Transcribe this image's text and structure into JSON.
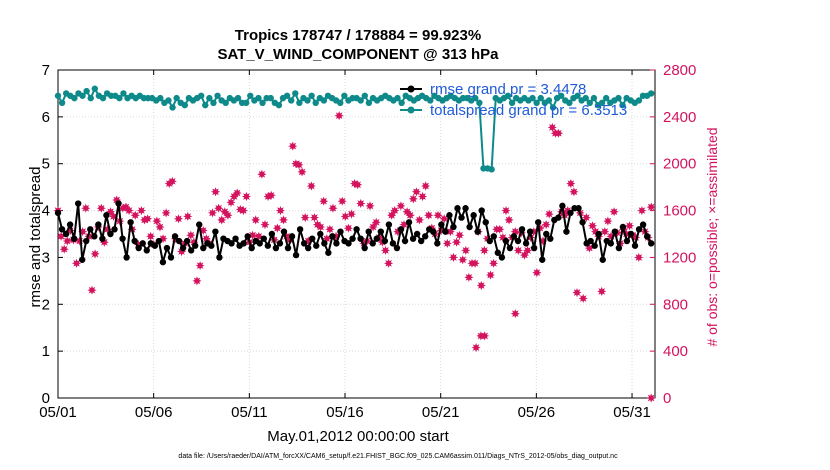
{
  "chart_data": {
    "type": "line",
    "title_line1": "Tropics 178747 / 178884 = 99.923%",
    "title_line2": "SAT_V_WIND_COMPONENT @ 313 hPa",
    "xlabel": "May.01,2012 00:00:00 start",
    "ylabel_left": "rmse and totalspread",
    "ylabel_right": "# of obs: o=possible; ×=assimilated",
    "footnote": "data file: /Users/raeder/DAI/ATM_forcXX/CAM6_setup/f.e21.FHIST_BGC.f09_025.CAM6assim.011/Diags_NTrS_2012-05/obs_diag_output.nc",
    "xlim": [
      1,
      32.2
    ],
    "ylim_left": [
      0,
      7
    ],
    "ylim_right": [
      0,
      2800
    ],
    "x_ticks": [
      1,
      6,
      11,
      16,
      21,
      26,
      31
    ],
    "x_tick_labels": [
      "05/01",
      "05/06",
      "05/11",
      "05/16",
      "05/21",
      "05/26",
      "05/31"
    ],
    "y_ticks_left": [
      0,
      1,
      2,
      3,
      4,
      5,
      6,
      7
    ],
    "y_ticks_right": [
      0,
      400,
      800,
      1200,
      1600,
      2000,
      2400,
      2800
    ],
    "grid": true,
    "legend_position": "top-right",
    "colors": {
      "rmse": "#000000",
      "spread": "#0e8a8a",
      "obs": "#d4135f",
      "legend_text": "#1f5bd8"
    },
    "series": [
      {
        "name": "rmse",
        "legend_label": "rmse grand pr = 3.4478",
        "axis": "left",
        "values": [
          3.95,
          3.6,
          3.5,
          3.7,
          3.4,
          4.15,
          2.95,
          3.35,
          3.6,
          3.45,
          3.7,
          3.4,
          3.9,
          3.5,
          3.6,
          4.15,
          3.4,
          3.0,
          3.75,
          3.35,
          3.2,
          3.3,
          3.15,
          3.3,
          3.25,
          3.35,
          2.9,
          3.2,
          3.0,
          3.45,
          3.35,
          3.2,
          3.35,
          3.15,
          3.25,
          3.7,
          3.2,
          3.3,
          3.25,
          3.55,
          3.0,
          3.4,
          3.35,
          3.3,
          3.4,
          3.25,
          3.3,
          3.45,
          3.2,
          3.35,
          3.3,
          3.4,
          3.25,
          3.5,
          3.2,
          3.3,
          3.55,
          3.2,
          3.45,
          3.05,
          3.6,
          3.3,
          3.2,
          3.4,
          3.25,
          3.5,
          3.3,
          3.1,
          3.45,
          3.3,
          3.55,
          3.35,
          3.3,
          3.4,
          3.6,
          3.4,
          3.2,
          3.55,
          3.3,
          3.4,
          3.55,
          3.35,
          3.7,
          3.3,
          3.2,
          3.6,
          3.35,
          3.75,
          3.4,
          3.5,
          3.35,
          3.45,
          3.6,
          3.55,
          3.3,
          3.7,
          3.55,
          3.9,
          3.65,
          4.05,
          3.85,
          4.05,
          3.65,
          3.9,
          3.55,
          4.0,
          3.75,
          3.35,
          3.45,
          3.1,
          3.0,
          3.35,
          3.2,
          3.45,
          3.35,
          3.6,
          3.3,
          3.55,
          3.2,
          3.75,
          2.95,
          3.5,
          3.4,
          3.8,
          3.85,
          4.1,
          3.55,
          3.95,
          4.05,
          4.05,
          3.75,
          3.3,
          3.35,
          3.25,
          3.5,
          2.95,
          3.35,
          3.3,
          3.55,
          3.2,
          3.65,
          3.35,
          3.5,
          3.25,
          3.6,
          3.7,
          3.45,
          3.3
        ],
        "markers": "filled-circle",
        "line": "solid"
      },
      {
        "name": "totalspread",
        "legend_label": "totalspread grand pr = 6.3513",
        "axis": "left",
        "values": [
          6.45,
          6.3,
          6.5,
          6.45,
          6.4,
          6.5,
          6.45,
          6.55,
          6.4,
          6.6,
          6.45,
          6.4,
          6.5,
          6.45,
          6.45,
          6.4,
          6.5,
          6.4,
          6.45,
          6.4,
          6.45,
          6.4,
          6.4,
          6.4,
          6.35,
          6.4,
          6.3,
          6.35,
          6.2,
          6.4,
          6.3,
          6.25,
          6.4,
          6.35,
          6.4,
          6.45,
          6.25,
          6.4,
          6.3,
          6.45,
          6.35,
          6.3,
          6.4,
          6.35,
          6.4,
          6.3,
          6.3,
          6.45,
          6.35,
          6.4,
          6.3,
          6.4,
          6.4,
          6.3,
          6.25,
          6.4,
          6.45,
          6.35,
          6.5,
          6.3,
          6.4,
          6.35,
          6.45,
          6.3,
          6.4,
          6.35,
          6.45,
          6.4,
          6.35,
          6.3,
          6.45,
          6.35,
          6.4,
          6.4,
          6.35,
          6.45,
          6.3,
          6.4,
          6.35,
          6.4,
          6.45,
          6.4,
          6.35,
          6.4,
          6.3,
          6.45,
          6.4,
          6.35,
          6.4,
          6.45,
          6.4,
          6.35,
          6.45,
          6.4,
          6.35,
          6.4,
          6.45,
          6.4,
          6.35,
          6.4,
          6.4,
          6.35,
          6.4,
          6.3,
          4.9,
          4.9,
          4.88,
          6.4,
          6.35,
          6.4,
          6.45,
          6.3,
          6.4,
          6.35,
          6.4,
          6.35,
          6.4,
          6.3,
          6.4,
          6.3,
          6.35,
          6.2,
          6.4,
          6.45,
          6.35,
          6.3,
          6.4,
          6.45,
          6.35,
          6.4,
          6.3,
          6.4,
          6.25,
          6.3,
          6.4,
          6.3,
          6.35,
          6.4,
          6.25,
          6.4,
          6.35,
          6.3,
          6.35,
          6.45,
          6.45,
          6.5
        ],
        "markers": "filled-circle",
        "line": "solid"
      },
      {
        "name": "obs_assimilated",
        "axis": "right",
        "values": [
          1600,
          1380,
          1270,
          1340,
          1430,
          1350,
          1150,
          1340,
          1420,
          1620,
          1380,
          920,
          1230,
          1460,
          1620,
          1330,
          1440,
          1590,
          1550,
          1690,
          1510,
          1620,
          1630,
          1600,
          1440,
          1560,
          1310,
          1600,
          1520,
          1530,
          1380,
          1310,
          1510,
          1460,
          1360,
          1580,
          1830,
          1850,
          1360,
          1530,
          1250,
          1320,
          1550,
          1390,
          1330,
          1000,
          1130,
          1430,
          1360,
          1320,
          1580,
          1760,
          1620,
          1520,
          1590,
          1560,
          1670,
          1720,
          1750,
          1610,
          1600,
          1720,
          1330,
          1390,
          1520,
          1380,
          1910,
          1480,
          1720,
          1730,
          1350,
          1450,
          1600,
          1520,
          1380,
          1350,
          2150,
          2000,
          1990,
          1930,
          1540,
          1340,
          1810,
          1540,
          1480,
          1460,
          1680,
          1360,
          1440,
          1620,
          1380,
          2410,
          1680,
          1550,
          1450,
          1570,
          1830,
          1820,
          1660,
          1320,
          1340,
          1640,
          1460,
          1500,
          1370,
          1330,
          1260,
          1150,
          1560,
          1600,
          1420,
          1640,
          1480,
          1590,
          1560,
          1700,
          1760,
          1520,
          1720,
          1810,
          1560,
          1450,
          1400,
          1560,
          1430,
          1530,
          1320,
          1420,
          1200,
          1330,
          1390,
          1180,
          1260,
          1030,
          1150,
          1150,
          1420,
          960,
          1260,
          1360,
          1050,
          1150,
          1440,
          1440,
          1370,
          1600,
          1520,
          1370,
          1420,
          1260,
          1410,
          1220,
          1260,
          1370,
          1420,
          1070,
          1450,
          1340,
          1480,
          1570,
          2310,
          2260,
          2260,
          1590,
          1560,
          1600,
          1830,
          1760,
          900,
          1580,
          850,
          1540,
          1280,
          1470,
          1420,
          1380,
          910,
          1420,
          1510,
          1380,
          1590,
          1410,
          1320,
          1440,
          1400,
          1470,
          1390,
          1370,
          1200,
          1600,
          1420,
          1370,
          1630
        ],
        "x_values_note": "scatter spans full month",
        "markers": "filled-star"
      }
    ],
    "low_obs_points": {
      "axis": "right",
      "x": [
        22.85,
        23.1,
        23.3,
        24.9,
        32.0
      ],
      "values": [
        430,
        530,
        530,
        720,
        0
      ]
    }
  }
}
